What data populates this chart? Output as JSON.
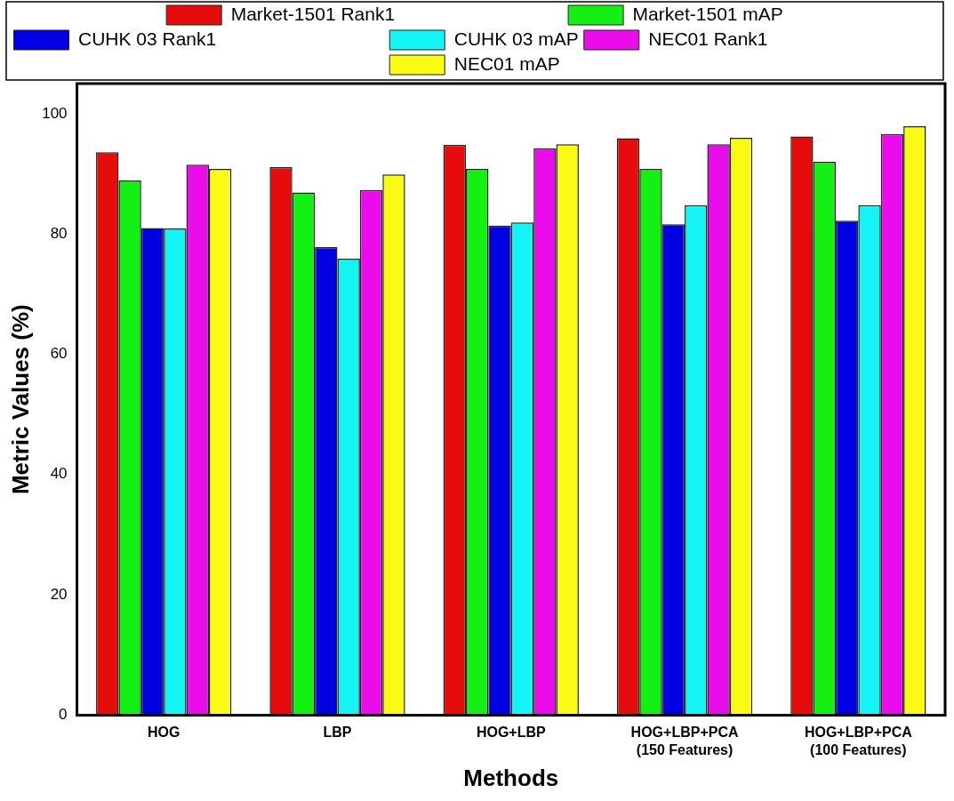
{
  "chart_data": {
    "type": "bar",
    "xlabel": "Methods",
    "ylabel": "Metric Values (%)",
    "categories": [
      "HOG",
      "LBP",
      "HOG+LBP",
      "HOG+LBP+PCA (150 Features)",
      "HOG+LBP+PCA (100 Features)"
    ],
    "series": [
      {
        "name": "Market-1501 Rank1",
        "color": "#e60c0c",
        "values": [
          93.6,
          91.1,
          94.8,
          95.9,
          96.2
        ]
      },
      {
        "name": "Market-1501 mAP",
        "color": "#14f014",
        "values": [
          88.9,
          86.9,
          90.8,
          90.8,
          92.0
        ]
      },
      {
        "name": "CUHK 03 Rank1",
        "color": "#0000e0",
        "values": [
          81.0,
          77.8,
          81.4,
          81.6,
          82.2
        ]
      },
      {
        "name": "CUHK 03 mAP",
        "color": "#14f4f4",
        "values": [
          80.9,
          75.9,
          81.9,
          84.8,
          84.8
        ]
      },
      {
        "name": "NEC01 Rank1",
        "color": "#ea0cea",
        "values": [
          91.5,
          87.3,
          94.2,
          94.9,
          96.6
        ]
      },
      {
        "name": "NEC01 mAP",
        "color": "#fafa14",
        "values": [
          90.8,
          89.9,
          94.9,
          96.0,
          97.9
        ]
      }
    ],
    "ylim": [
      0,
      105
    ],
    "yticks": [
      0,
      20,
      40,
      60,
      80,
      100
    ],
    "grid": false,
    "legend": "top"
  }
}
